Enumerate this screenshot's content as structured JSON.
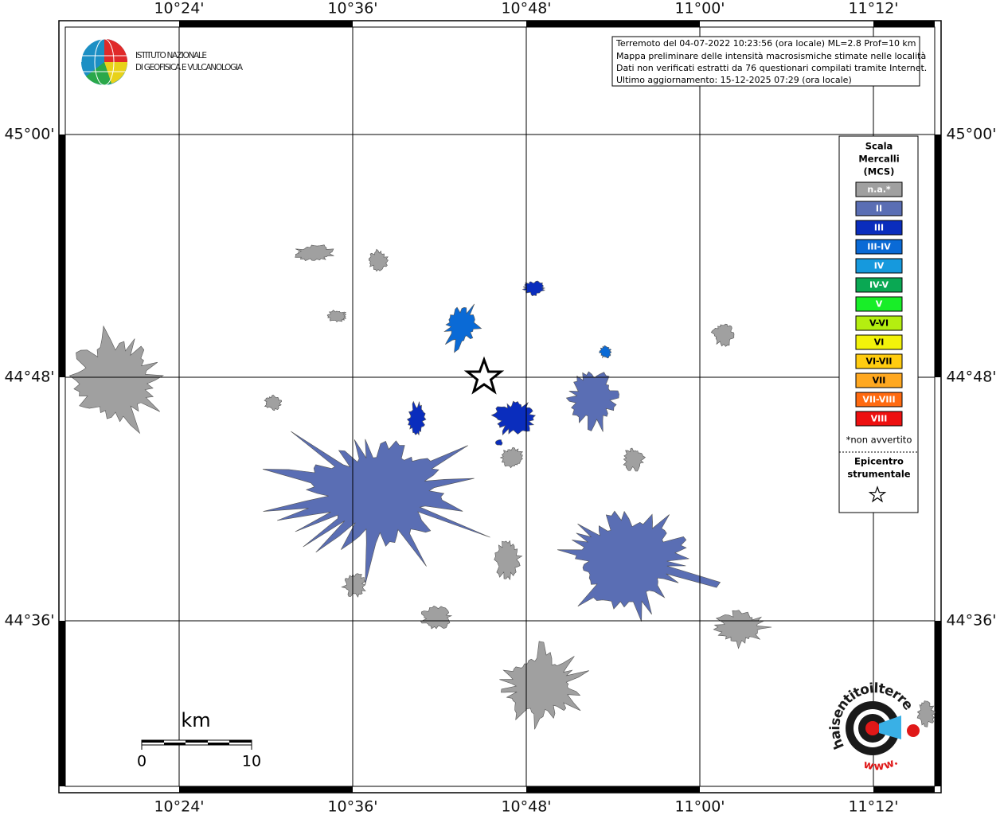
{
  "header": {
    "logo_lines": [
      "ISTITUTO NAZIONALE",
      "DI GEOFISICA E VULCANOLOGIA"
    ]
  },
  "info_box": {
    "lines": [
      "Terremoto del 04-07-2022 10:23:56 (ora locale) ML=2.8 Prof=10 km",
      "Mappa preliminare delle intensità macrosismiche stimate nelle località",
      "Dati non verificati estratti da 76 questionari compilati tramite Internet.",
      "Ultimo aggiornamento: 15-12-2025 07:29 (ora locale)"
    ]
  },
  "map": {
    "lon_labels": [
      "10°24'",
      "10°36'",
      "10°48'",
      "11°00'",
      "11°12'"
    ],
    "lat_labels": [
      "45°00'",
      "44°48'",
      "44°36'"
    ]
  },
  "legend": {
    "title_lines": [
      "Scala",
      "Mercalli",
      "(MCS)"
    ],
    "items": [
      {
        "label": "n.a.*",
        "color": "#a0a0a0"
      },
      {
        "label": "II",
        "color": "#5a6eb4"
      },
      {
        "label": "III",
        "color": "#0a2dbd"
      },
      {
        "label": "III-IV",
        "color": "#0a6ad6"
      },
      {
        "label": "IV",
        "color": "#1699dd"
      },
      {
        "label": "IV-V",
        "color": "#0aa853"
      },
      {
        "label": "V",
        "color": "#18ee28"
      },
      {
        "label": "V-VI",
        "color": "#b4ee10"
      },
      {
        "label": "VI",
        "color": "#f2f20a"
      },
      {
        "label": "VI-VII",
        "color": "#ffcc10"
      },
      {
        "label": "VII",
        "color": "#ffa820"
      },
      {
        "label": "VII-VIII",
        "color": "#ff6a10"
      },
      {
        "label": "VIII",
        "color": "#ee1010"
      }
    ],
    "note": "*non avvertito",
    "epicenter_lines": [
      "Epicentro",
      "strumentale"
    ]
  },
  "scale_bar": {
    "unit": "km",
    "labels": [
      "0",
      "10"
    ]
  },
  "badge": {
    "text": "haisentitoilterremoto.it",
    "www": "www."
  }
}
